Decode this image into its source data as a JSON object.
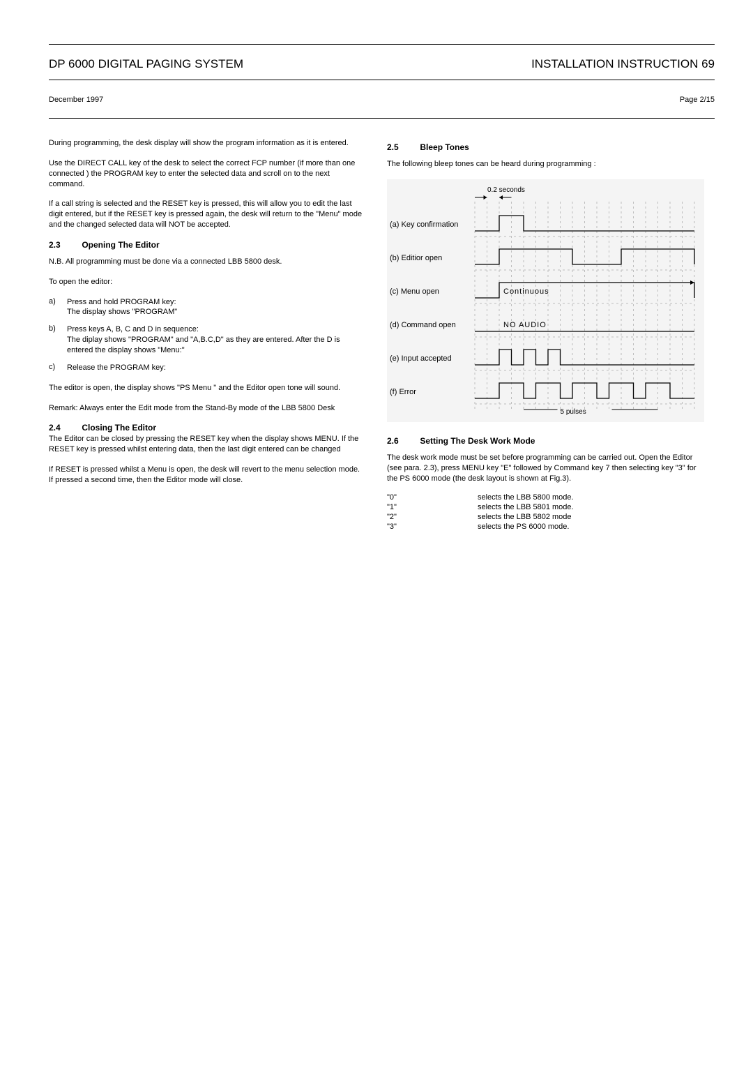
{
  "header": {
    "left": "DP 6000 DIGITAL PAGING SYSTEM",
    "right": "INSTALLATION INSTRUCTION 69",
    "date": "December 1997",
    "page": "Page 2/15"
  },
  "left_col": {
    "p1": "During programming, the desk display will show  the  program information as it is entered.",
    "p2": "Use the DIRECT CALL key of the desk to select the correct FCP number (if more than one connected ) the PROGRAM key to enter the selected data and scroll on to the next command.",
    "p3": "If  a call string is selected and the RESET key is pressed, this will allow you to edit the last digit entered, but if the RESET key is pressed again, the desk will return to the \"Menu\" mode and the changed selected data will NOT be accepted.",
    "s23_num": "2.3",
    "s23_title": "Opening The Editor",
    "p4": "N.B. All programming must be done via a connected LBB 5800 desk.",
    "p5": "To open the editor:",
    "a_mk": "a)",
    "a_txt": "Press and hold PROGRAM key:\nThe display shows   \"PROGRAM\"",
    "b_mk": "b)",
    "b_txt": "Press keys A, B, C and D in sequence:\nThe diplay shows \"PROGRAM\" and \"A,B.C,D\" as they are entered. After the D is entered the display shows               \"Menu:\"",
    "c_mk": "c)",
    "c_txt": "Release the PROGRAM key:",
    "p6": "The editor is open, the display shows \"PS Menu \" and the Editor open tone will sound.",
    "p7": "Remark:   Always enter the Edit mode from the Stand-By mode of the LBB 5800 Desk",
    "s24_num": "2.4",
    "s24_title": "Closing The Editor",
    "p8": "The Editor can be closed by pressing the RESET key when the display shows MENU. If the RESET key is pressed whilst entering data, then the last digit entered can be changed",
    "p9": "If RESET is pressed whilst a Menu is open, the desk will revert to the menu selection mode. If pressed a second time, then the Editor mode will close."
  },
  "right_col": {
    "s25_num": "2.5",
    "s25_title": "Bleep Tones",
    "p1": "The following bleep tones can be heard during programming :",
    "diagram": {
      "bg": "#f4f4f4",
      "grid_color": "#bdbdbd",
      "line_color": "#000000",
      "label_02s": "0.2 seconds",
      "rows": [
        {
          "label": "(a) Key confirmation",
          "type": "single_pulse"
        },
        {
          "label": "(b) Editior open",
          "type": "two_long"
        },
        {
          "label": "(c) Menu open",
          "type": "continuous",
          "overlay": "Continuous"
        },
        {
          "label": "(d) Command open",
          "type": "flat",
          "overlay": "NO AUDIO"
        },
        {
          "label": "(e) Input accepted",
          "type": "three_short"
        },
        {
          "label": "(f) Error",
          "type": "five_pulses"
        }
      ],
      "label_5p": "5 pulses"
    },
    "s26_num": "2.6",
    "s26_title": "Setting The Desk Work Mode",
    "p2": "The desk work mode must be set before programming can be carried out. Open the Editor (see para. 2.3), press MENU key \"E\" followed by Command key 7 then selecting key \"3\" for the PS 6000 mode (the desk layout is shown at Fig.3).",
    "modes": [
      {
        "k": "\"0\"",
        "v": "selects the LBB 5800 mode."
      },
      {
        "k": "\"1\"",
        "v": "selects the LBB 5801 mode."
      },
      {
        "k": "\"2\"",
        "v": "selects the LBB 5802 mode"
      },
      {
        "k": "\"3\"",
        "v": "selects the PS 6000 mode."
      }
    ]
  }
}
